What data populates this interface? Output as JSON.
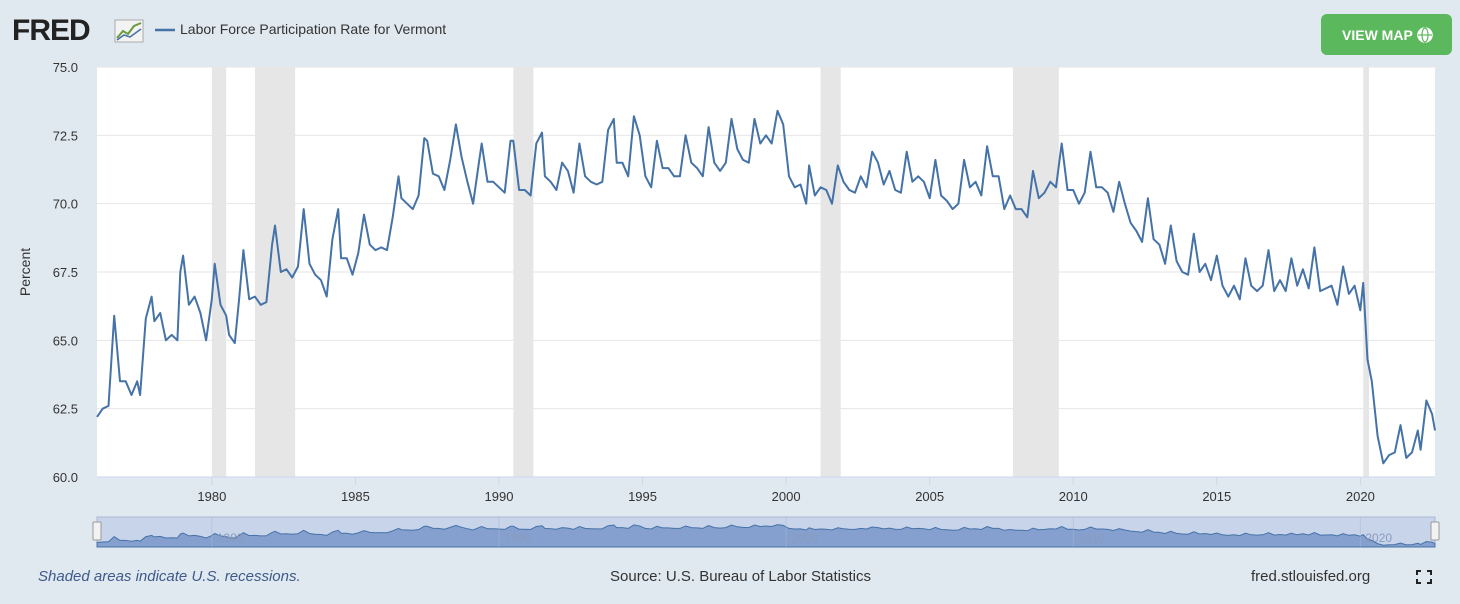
{
  "logo": "FRED",
  "view_map_button": "VIEW MAP",
  "footer": {
    "note": "Shaded areas indicate U.S. recessions.",
    "source": "Source: U.S. Bureau of Labor Statistics",
    "site": "fred.stlouisfed.org"
  },
  "chart_data": {
    "type": "line",
    "ylabel": "Percent",
    "xlim": [
      1976,
      2022.6
    ],
    "ylim": [
      60,
      75
    ],
    "xticks": [
      1980,
      1985,
      1990,
      1995,
      2000,
      2005,
      2010,
      2015,
      2020
    ],
    "yticks": [
      {
        "value": 60,
        "label": "60.0"
      },
      {
        "value": 62.5,
        "label": "62.5"
      },
      {
        "value": 65,
        "label": "65.0"
      },
      {
        "value": 67.5,
        "label": "67.5"
      },
      {
        "value": 70,
        "label": "70.0"
      },
      {
        "value": 72.5,
        "label": "72.5"
      },
      {
        "value": 75,
        "label": "75.0"
      }
    ],
    "navigator_xticks": [
      1980,
      1990,
      2000,
      2010,
      2020
    ],
    "grid": true,
    "recessions": [
      [
        1980.0,
        1980.5
      ],
      [
        1981.5,
        1982.9
      ],
      [
        1990.5,
        1991.2
      ],
      [
        2001.2,
        2001.9
      ],
      [
        2007.9,
        2009.5
      ],
      [
        2020.1,
        2020.3
      ]
    ],
    "x": [
      1976.0,
      1976.2,
      1976.4,
      1976.6,
      1976.8,
      1977.0,
      1977.2,
      1977.4,
      1977.5,
      1977.7,
      1977.9,
      1978.0,
      1978.2,
      1978.4,
      1978.6,
      1978.8,
      1978.9,
      1979.0,
      1979.2,
      1979.4,
      1979.6,
      1979.8,
      1980.0,
      1980.1,
      1980.3,
      1980.5,
      1980.6,
      1980.8,
      1980.95,
      1981.1,
      1981.3,
      1981.5,
      1981.7,
      1981.9,
      1982.1,
      1982.2,
      1982.4,
      1982.6,
      1982.8,
      1983.0,
      1983.2,
      1983.4,
      1983.6,
      1983.8,
      1984.0,
      1984.2,
      1984.4,
      1984.5,
      1984.7,
      1984.9,
      1985.1,
      1985.3,
      1985.5,
      1985.7,
      1985.9,
      1986.1,
      1986.3,
      1986.5,
      1986.6,
      1986.8,
      1987.0,
      1987.2,
      1987.4,
      1987.5,
      1987.7,
      1987.9,
      1988.1,
      1988.3,
      1988.5,
      1988.7,
      1988.9,
      1989.1,
      1989.3,
      1989.4,
      1989.6,
      1989.8,
      1990.0,
      1990.2,
      1990.4,
      1990.5,
      1990.7,
      1990.9,
      1991.1,
      1991.3,
      1991.5,
      1991.6,
      1991.8,
      1992.0,
      1992.2,
      1992.4,
      1992.6,
      1992.8,
      1993.0,
      1993.2,
      1993.4,
      1993.6,
      1993.8,
      1994.0,
      1994.1,
      1994.3,
      1994.5,
      1994.7,
      1994.9,
      1995.1,
      1995.3,
      1995.5,
      1995.7,
      1995.9,
      1996.1,
      1996.3,
      1996.5,
      1996.7,
      1996.9,
      1997.1,
      1997.3,
      1997.5,
      1997.7,
      1997.9,
      1998.1,
      1998.3,
      1998.5,
      1998.7,
      1998.9,
      1999.1,
      1999.3,
      1999.5,
      1999.7,
      1999.9,
      2000.1,
      2000.3,
      2000.5,
      2000.7,
      2000.8,
      2001.0,
      2001.2,
      2001.4,
      2001.6,
      2001.8,
      2002.0,
      2002.2,
      2002.4,
      2002.6,
      2002.8,
      2003.0,
      2003.2,
      2003.4,
      2003.6,
      2003.8,
      2004.0,
      2004.2,
      2004.4,
      2004.6,
      2004.8,
      2005.0,
      2005.2,
      2005.4,
      2005.6,
      2005.8,
      2006.0,
      2006.2,
      2006.4,
      2006.6,
      2006.8,
      2007.0,
      2007.2,
      2007.4,
      2007.6,
      2007.8,
      2008.0,
      2008.2,
      2008.4,
      2008.6,
      2008.8,
      2009.0,
      2009.2,
      2009.4,
      2009.6,
      2009.8,
      2010.0,
      2010.2,
      2010.4,
      2010.6,
      2010.8,
      2011.0,
      2011.2,
      2011.4,
      2011.6,
      2011.8,
      2012.0,
      2012.2,
      2012.4,
      2012.6,
      2012.8,
      2013.0,
      2013.2,
      2013.4,
      2013.6,
      2013.8,
      2014.0,
      2014.2,
      2014.4,
      2014.6,
      2014.8,
      2015.0,
      2015.2,
      2015.4,
      2015.6,
      2015.8,
      2016.0,
      2016.2,
      2016.4,
      2016.6,
      2016.8,
      2017.0,
      2017.2,
      2017.4,
      2017.6,
      2017.8,
      2018.0,
      2018.2,
      2018.4,
      2018.6,
      2018.8,
      2019.0,
      2019.2,
      2019.4,
      2019.6,
      2019.8,
      2020.0,
      2020.1,
      2020.25,
      2020.4,
      2020.6,
      2020.8,
      2021.0,
      2021.2,
      2021.4,
      2021.6,
      2021.8,
      2022.0,
      2022.1,
      2022.3,
      2022.5,
      2022.6
    ],
    "series": [
      {
        "name": "Labor Force Participation Rate for Vermont",
        "color": "#4572a7",
        "values": [
          62.2,
          62.5,
          62.6,
          65.9,
          63.5,
          63.5,
          63.0,
          63.5,
          63.0,
          65.8,
          66.6,
          65.7,
          66.0,
          65.0,
          65.2,
          65.0,
          67.5,
          68.1,
          66.3,
          66.6,
          66.0,
          65.0,
          66.5,
          67.8,
          66.3,
          65.9,
          65.2,
          64.9,
          66.5,
          68.3,
          66.5,
          66.6,
          66.3,
          66.4,
          68.5,
          69.2,
          67.5,
          67.6,
          67.3,
          67.7,
          69.8,
          67.8,
          67.4,
          67.2,
          66.6,
          68.7,
          69.8,
          68.0,
          68.0,
          67.4,
          68.2,
          69.6,
          68.5,
          68.3,
          68.4,
          68.3,
          69.5,
          71.0,
          70.2,
          70.0,
          69.8,
          70.3,
          72.4,
          72.3,
          71.1,
          71.0,
          70.5,
          71.6,
          72.9,
          71.7,
          70.8,
          70.0,
          71.5,
          72.2,
          70.8,
          70.8,
          70.6,
          70.4,
          72.3,
          72.3,
          70.5,
          70.5,
          70.3,
          72.2,
          72.6,
          71.0,
          70.8,
          70.5,
          71.5,
          71.2,
          70.4,
          72.2,
          71.0,
          70.8,
          70.7,
          70.8,
          72.7,
          73.1,
          71.5,
          71.5,
          71.0,
          73.2,
          72.5,
          71.0,
          70.6,
          72.3,
          71.3,
          71.3,
          71.0,
          71.0,
          72.5,
          71.5,
          71.3,
          71.0,
          72.8,
          71.5,
          71.2,
          71.5,
          73.1,
          72.0,
          71.6,
          71.5,
          73.1,
          72.2,
          72.5,
          72.2,
          73.4,
          72.9,
          71.0,
          70.6,
          70.7,
          70.0,
          71.4,
          70.3,
          70.6,
          70.5,
          70.0,
          71.4,
          70.8,
          70.5,
          70.4,
          71.0,
          70.6,
          71.9,
          71.5,
          70.7,
          71.2,
          70.5,
          70.4,
          71.9,
          70.8,
          71.0,
          70.8,
          70.2,
          71.6,
          70.3,
          70.1,
          69.8,
          70.0,
          71.6,
          70.6,
          70.8,
          70.3,
          72.1,
          71.0,
          71.0,
          69.8,
          70.3,
          69.8,
          69.8,
          69.5,
          71.2,
          70.2,
          70.4,
          70.8,
          70.6,
          72.2,
          70.5,
          70.5,
          70.0,
          70.4,
          71.9,
          70.6,
          70.6,
          70.4,
          69.7,
          70.8,
          70.0,
          69.3,
          69.0,
          68.6,
          70.2,
          68.7,
          68.5,
          67.8,
          69.2,
          67.9,
          67.5,
          67.4,
          68.9,
          67.5,
          67.8,
          67.2,
          68.1,
          67.0,
          66.6,
          67.0,
          66.5,
          68.0,
          67.0,
          66.8,
          67.0,
          68.3,
          66.8,
          67.2,
          66.8,
          68.0,
          67.0,
          67.6,
          66.9,
          68.4,
          66.8,
          66.9,
          67.0,
          66.3,
          67.7,
          66.7,
          67.0,
          66.1,
          67.1,
          64.3,
          63.5,
          61.5,
          60.5,
          60.8,
          60.9,
          61.9,
          60.7,
          60.9,
          61.7,
          61.0,
          62.8,
          62.3,
          61.7
        ]
      }
    ]
  }
}
